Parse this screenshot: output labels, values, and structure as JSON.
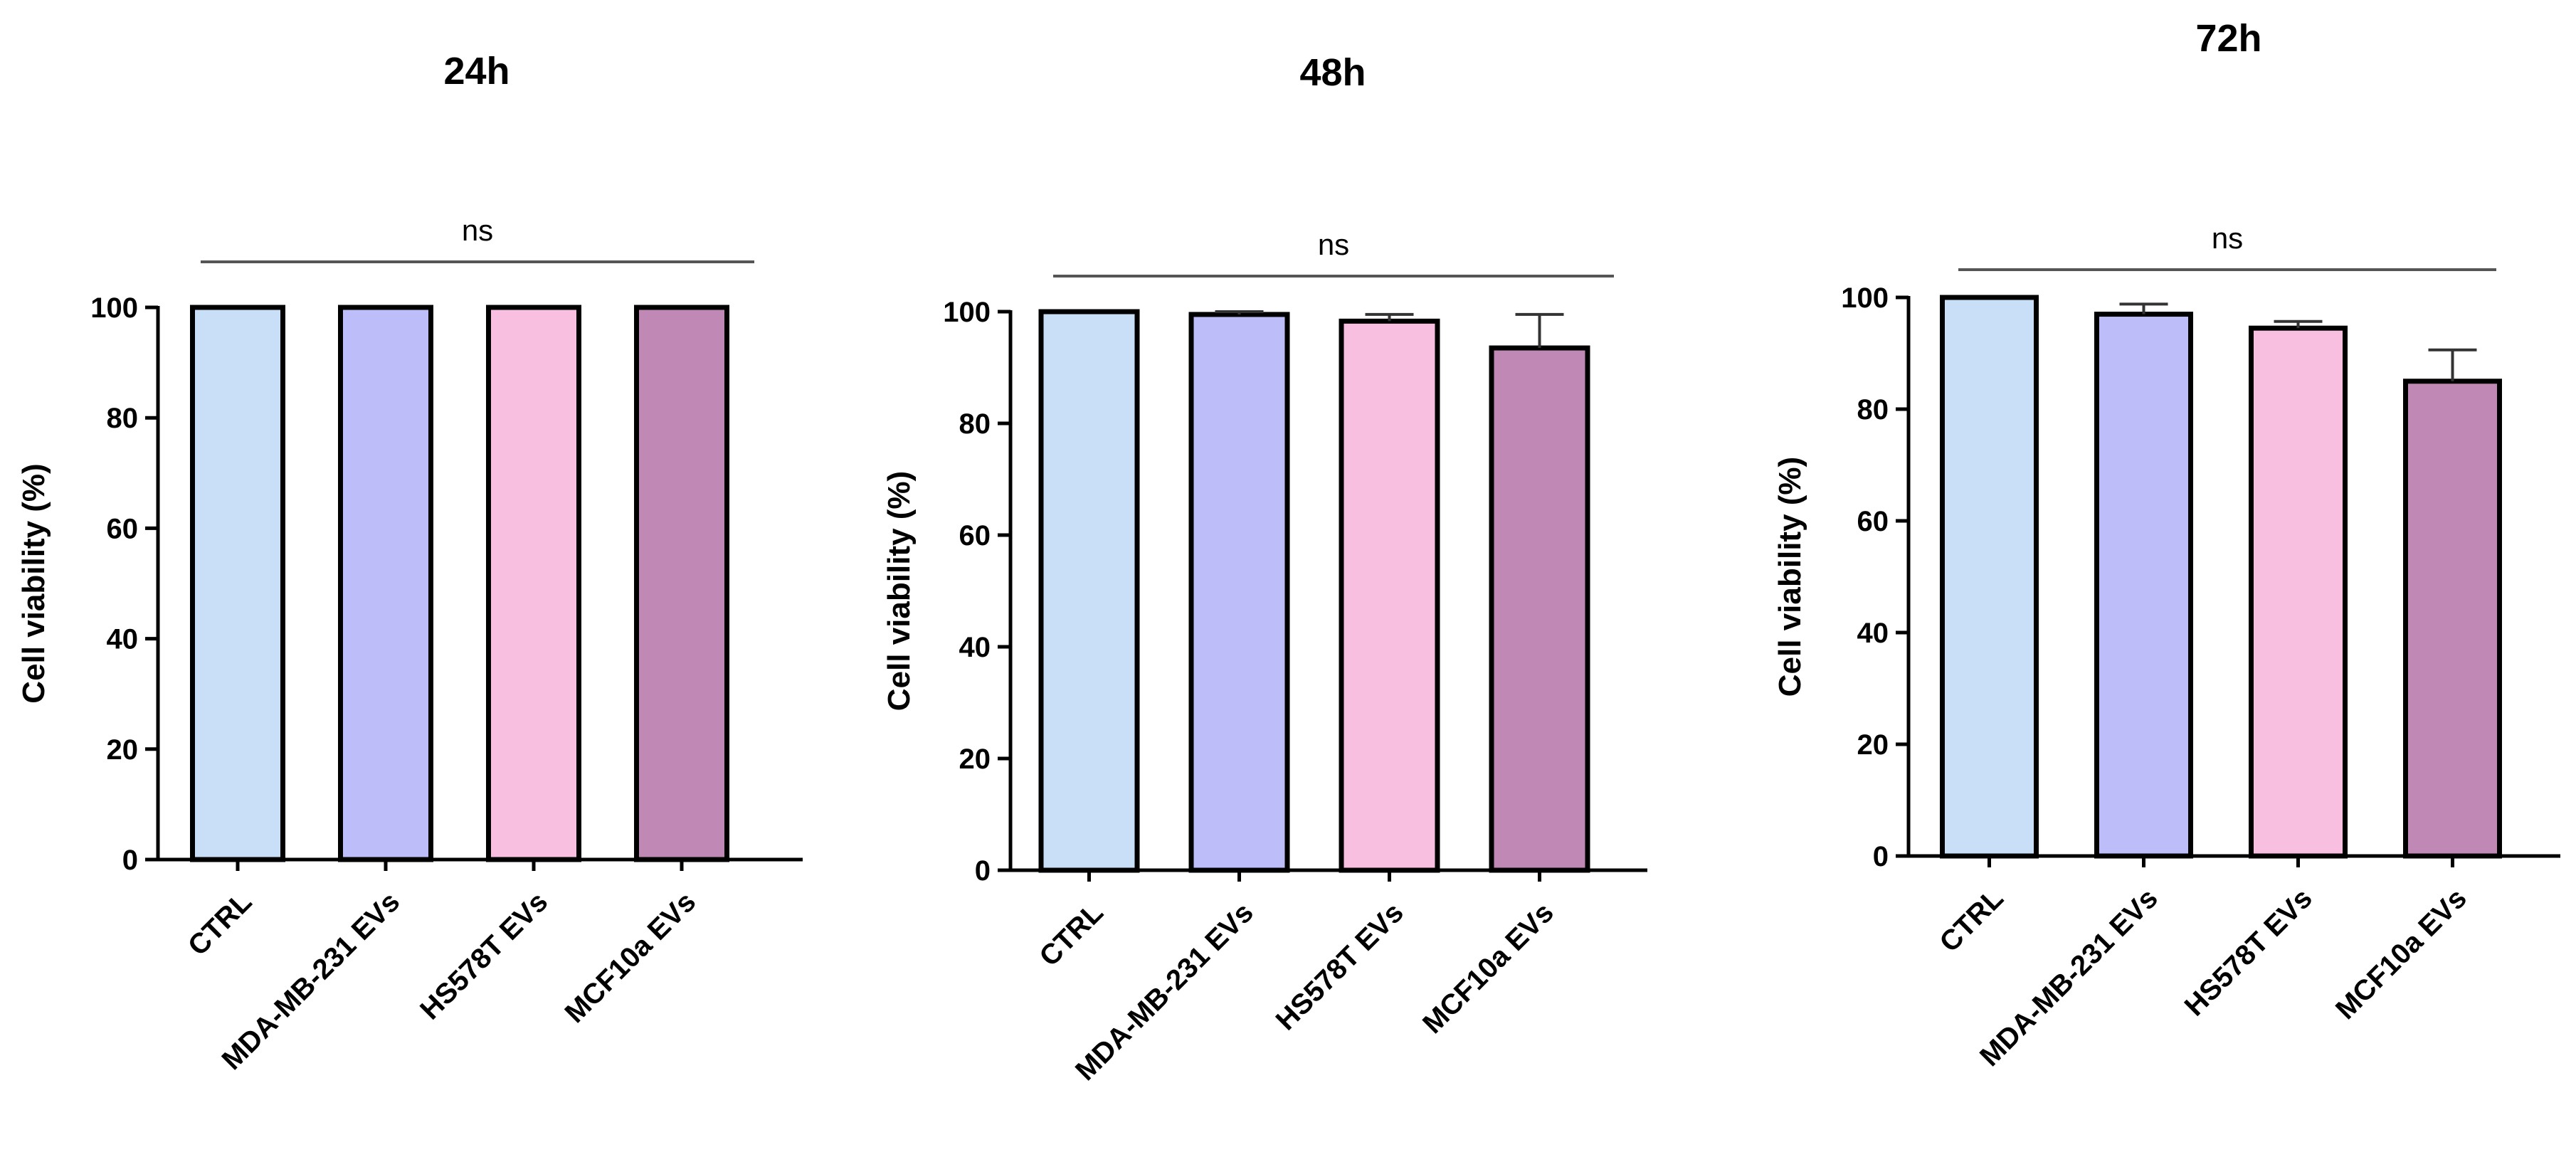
{
  "chart_data": [
    {
      "type": "bar",
      "title": "24h",
      "ylabel": "Cell viability (%)",
      "ylim": [
        0,
        100
      ],
      "yticks": [
        0,
        20,
        40,
        60,
        80,
        100
      ],
      "categories": [
        "CTRL",
        "MDA-MB-231 EVs",
        "HS578T EVs",
        "MCF10a EVs"
      ],
      "values": [
        100,
        100,
        100,
        100
      ],
      "errors": [
        0,
        0,
        0,
        0
      ],
      "colors": [
        "#c9dff7",
        "#bdbdfa",
        "#f9bfe0",
        "#c088b5"
      ],
      "annotation": "ns"
    },
    {
      "type": "bar",
      "title": "48h",
      "ylabel": "Cell viability (%)",
      "ylim": [
        0,
        100
      ],
      "yticks": [
        0,
        20,
        40,
        60,
        80,
        100
      ],
      "categories": [
        "CTRL",
        "MDA-MB-231 EVs",
        "HS578T EVs",
        "MCF10a EVs"
      ],
      "values": [
        100,
        99.5,
        98.3,
        93.5
      ],
      "errors": [
        0,
        0.5,
        1.2,
        6
      ],
      "colors": [
        "#c9dff7",
        "#bdbdfa",
        "#f9bfe0",
        "#c088b5"
      ],
      "annotation": "ns"
    },
    {
      "type": "bar",
      "title": "72h",
      "ylabel": "Cell viability (%)",
      "ylim": [
        0,
        100
      ],
      "yticks": [
        0,
        20,
        40,
        60,
        80,
        100
      ],
      "categories": [
        "CTRL",
        "MDA-MB-231 EVs",
        "HS578T EVs",
        "MCF10a EVs"
      ],
      "values": [
        100,
        97,
        94.5,
        85
      ],
      "errors": [
        0,
        1.8,
        1.2,
        5.6
      ],
      "colors": [
        "#c9dff7",
        "#bdbdfa",
        "#f9bfe0",
        "#c088b5"
      ],
      "annotation": "ns"
    }
  ]
}
